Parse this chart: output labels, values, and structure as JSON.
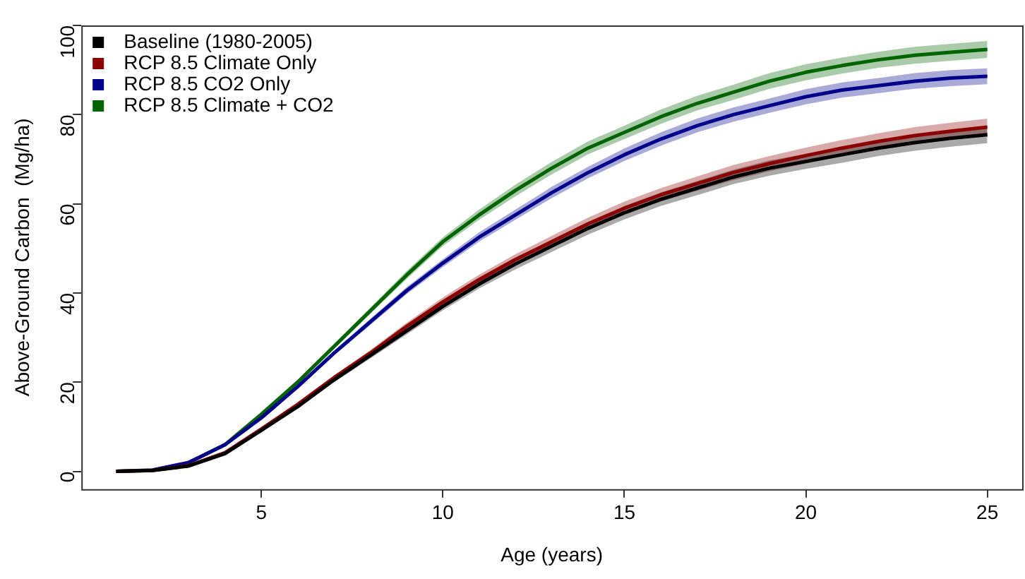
{
  "chart_data": {
    "type": "line",
    "xlabel": "Age (years)",
    "ylabel": "Above-Ground Carbon  (Mg/ha)",
    "x": [
      1,
      2,
      3,
      4,
      5,
      6,
      7,
      8,
      9,
      10,
      11,
      12,
      13,
      14,
      15,
      16,
      17,
      18,
      19,
      20,
      21,
      22,
      23,
      24,
      25
    ],
    "xlim": [
      0.04,
      25.96
    ],
    "xticks": [
      5,
      10,
      15,
      20,
      25
    ],
    "ylim": [
      -4,
      100
    ],
    "yticks": [
      0,
      20,
      40,
      60,
      80,
      100
    ],
    "grid": false,
    "legend": "top left",
    "marker": "none",
    "line_style": "solid",
    "series": [
      {
        "name": "Baseline (1980-2005)",
        "color": "#000000",
        "values": [
          0,
          0.2,
          1.2,
          4,
          9.2,
          14.5,
          20.5,
          26,
          31.5,
          37,
          42,
          46.5,
          50.5,
          54.5,
          58,
          61,
          63.5,
          66,
          68,
          69.5,
          71,
          72.5,
          73.7,
          74.7,
          75.5
        ],
        "lower": [
          0,
          0.2,
          1.1,
          3.9,
          9,
          14.1,
          20,
          25.3,
          30.7,
          36.1,
          41,
          45.3,
          49.2,
          53.1,
          56.5,
          59.5,
          61.9,
          64.4,
          66.3,
          67.8,
          69.2,
          70.7,
          71.9,
          72.8,
          73.6
        ],
        "upper": [
          0,
          0.2,
          1.3,
          4.1,
          9.4,
          14.9,
          21,
          26.7,
          32.3,
          37.9,
          43,
          47.7,
          51.8,
          55.9,
          59.5,
          62.5,
          65.1,
          67.6,
          69.7,
          71.2,
          72.8,
          74.3,
          75.5,
          76.6,
          77.4
        ]
      },
      {
        "name": "RCP 8.5 Climate Only",
        "color": "#8b0000",
        "values": [
          0,
          0.2,
          1.3,
          4.2,
          9.5,
          15,
          21,
          26.5,
          32.5,
          38,
          43,
          47.5,
          51.5,
          55.5,
          59,
          62,
          64.5,
          67,
          69,
          70.8,
          72.5,
          74,
          75.3,
          76.3,
          77.2
        ],
        "lower": [
          0,
          0.2,
          1.2,
          4.1,
          9.3,
          14.6,
          20.5,
          25.8,
          31.7,
          37,
          41.9,
          46.3,
          50.2,
          54.1,
          57.5,
          60.5,
          62.9,
          65.3,
          67.3,
          69,
          70.7,
          72.2,
          73.4,
          74.4,
          75.3
        ],
        "upper": [
          0,
          0.2,
          1.4,
          4.3,
          9.7,
          15.4,
          21.5,
          27.2,
          33.3,
          39,
          44.1,
          48.7,
          52.8,
          56.9,
          60.5,
          63.5,
          66.1,
          68.7,
          70.7,
          72.6,
          74.3,
          75.8,
          77.2,
          78.2,
          79.1
        ]
      },
      {
        "name": "RCP 8.5 CO2 Only",
        "color": "#00008b",
        "values": [
          0,
          0.3,
          2,
          6,
          12,
          19,
          26.5,
          33.5,
          40.5,
          46.7,
          52.5,
          57.5,
          62.5,
          67,
          71,
          74.5,
          77.5,
          80,
          82,
          84,
          85.5,
          86.5,
          87.5,
          88.2,
          88.6
        ],
        "lower": [
          0,
          0.3,
          1.9,
          5.9,
          11.8,
          18.6,
          26,
          32.8,
          39.7,
          45.8,
          51.5,
          56.4,
          61.3,
          65.7,
          69.6,
          73,
          76,
          78.4,
          80.4,
          82.3,
          83.8,
          84.8,
          85.8,
          86.4,
          86.8
        ],
        "upper": [
          0,
          0.3,
          2.1,
          6.1,
          12.2,
          19.4,
          27,
          34.2,
          41.3,
          47.6,
          53.6,
          58.7,
          63.8,
          68.3,
          72.4,
          76,
          79.1,
          81.6,
          83.6,
          85.7,
          87.2,
          88.2,
          89.3,
          90,
          90.4
        ]
      },
      {
        "name": "RCP 8.5 Climate + CO2",
        "color": "#006400",
        "values": [
          null,
          null,
          2,
          6,
          12.8,
          20,
          28,
          36,
          44,
          51.5,
          57.5,
          63,
          68,
          72.5,
          76,
          79.5,
          82.5,
          85,
          87.5,
          89.5,
          91,
          92.3,
          93.3,
          94,
          94.6
        ],
        "lower": [
          null,
          null,
          1.9,
          5.9,
          12.5,
          19.6,
          27.4,
          35.3,
          43.1,
          50.5,
          56.4,
          61.7,
          66.6,
          71.1,
          74.5,
          77.9,
          80.9,
          83.3,
          85.8,
          87.7,
          89.2,
          90.5,
          91.4,
          92.1,
          92.7
        ],
        "upper": [
          null,
          null,
          2.1,
          6.1,
          13.1,
          20.4,
          28.6,
          36.7,
          44.9,
          52.5,
          58.7,
          64.3,
          69.4,
          74,
          77.5,
          81.1,
          84.2,
          86.7,
          89.3,
          91.3,
          92.8,
          94.1,
          95.2,
          95.9,
          96.5
        ]
      }
    ]
  }
}
